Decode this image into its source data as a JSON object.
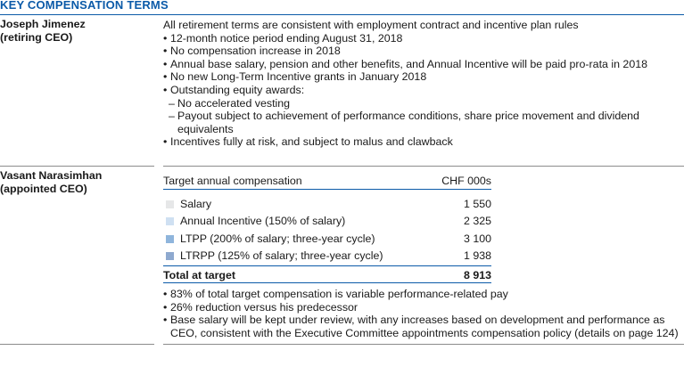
{
  "title": "KEY COMPENSATION TERMS",
  "jimenez": {
    "name_line1": "Joseph Jimenez",
    "name_line2": "(retiring CEO)",
    "intro": "All retirement terms are consistent with employment contract and incentive plan rules",
    "bullets": [
      "12-month notice period ending August 31, 2018",
      "No compensation increase in 2018",
      "Annual base salary, pension and other benefits, and Annual Incentive will be paid pro-rata in 2018",
      "No new Long-Term Incentive grants in January 2018",
      "Outstanding equity awards:"
    ],
    "sub_bullets": [
      "No accelerated vesting",
      "Payout subject to achievement of performance conditions, share price movement and dividend equivalents"
    ],
    "last_bullet": "Incentives fully at risk, and subject to malus and clawback"
  },
  "narasimhan": {
    "name_line1": "Vasant Narasimhan",
    "name_line2": "(appointed CEO)",
    "table": {
      "header_label": "Target annual compensation",
      "header_unit": "CHF 000s",
      "rows": [
        {
          "label": "Salary",
          "value": "1 550",
          "color": "#e6e7e8"
        },
        {
          "label": "Annual Incentive (150% of salary)",
          "value": "2 325",
          "color": "#cfe0f2"
        },
        {
          "label": "LTPP (200% of salary; three-year cycle)",
          "value": "3 100",
          "color": "#8fb5dc"
        },
        {
          "label": "LTRPP (125% of salary; three-year cycle)",
          "value": "1 938",
          "color": "#8ea9cf"
        }
      ],
      "total_label": "Total at target",
      "total_value": "8 913"
    },
    "bullets": [
      "83% of total target compensation is variable performance-related pay",
      "26% reduction versus his predecessor",
      "Base salary will be kept under review, with any increases based on development and performance as CEO, consistent with the Executive Committee appointments compensation policy (details on page 124)"
    ]
  }
}
